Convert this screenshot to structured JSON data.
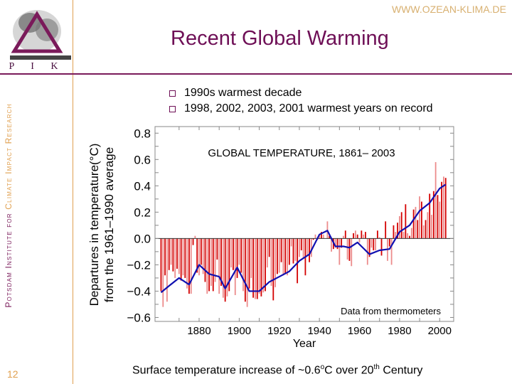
{
  "header": {
    "url": "WWW.OZEAN-KLIMA.DE",
    "title": "Recent Global Warming",
    "logo_text": "P I K"
  },
  "sidebar": {
    "part1": "Potsdam Institute for ",
    "part2": "Climate Impact Research"
  },
  "bullets": [
    "1990s warmest decade",
    "1998, 2002, 2003, 2001 warmest years on record"
  ],
  "page_number": "12",
  "caption": {
    "pre": "Surface temperature increase of ~0.6",
    "deg": "o",
    "mid": "C over 20",
    "sup": "th",
    "post": " Century"
  },
  "colors": {
    "accent": "#6e0f56",
    "secondary": "#e0a050",
    "bar_dark": "#d40000",
    "bar_light": "#ec8c8c",
    "smooth": "#1010b0"
  },
  "chart_data": {
    "type": "bar",
    "title": "GLOBAL TEMPERATURE, 1861– 2003",
    "annotation": "Data from thermometers",
    "xlabel": "Year",
    "ylabel_line1": "Departures in temperature(°C)",
    "ylabel_line2": "from the 1961–1990 average",
    "xlim": [
      1858,
      2007
    ],
    "ylim": [
      -0.63,
      0.85
    ],
    "xticks": [
      1880,
      1900,
      1920,
      1940,
      1960,
      1980,
      2000
    ],
    "yticks": [
      "0.8",
      "0.6",
      "0.4",
      "0.2",
      "0.0",
      "−0.2",
      "−0.4",
      "−0.6"
    ],
    "ytick_values": [
      0.8,
      0.6,
      0.4,
      0.2,
      0.0,
      -0.2,
      -0.4,
      -0.6
    ],
    "x_start": 1861,
    "series": [
      {
        "type": "bar",
        "values": [
          -0.4,
          -0.52,
          -0.28,
          -0.48,
          -0.24,
          -0.2,
          -0.25,
          -0.3,
          -0.23,
          -0.27,
          -0.32,
          -0.28,
          -0.3,
          -0.38,
          -0.42,
          -0.42,
          -0.05,
          0.02,
          -0.26,
          -0.28,
          -0.2,
          -0.27,
          -0.33,
          -0.42,
          -0.4,
          -0.36,
          -0.4,
          -0.33,
          -0.16,
          -0.42,
          -0.36,
          -0.45,
          -0.48,
          -0.44,
          -0.4,
          -0.22,
          -0.24,
          -0.43,
          -0.3,
          -0.2,
          -0.26,
          -0.4,
          -0.48,
          -0.52,
          -0.38,
          -0.3,
          -0.45,
          -0.46,
          -0.46,
          -0.42,
          -0.44,
          -0.41,
          -0.4,
          -0.22,
          -0.14,
          -0.36,
          -0.47,
          -0.37,
          -0.27,
          -0.26,
          -0.18,
          -0.28,
          -0.27,
          -0.28,
          -0.2,
          -0.06,
          -0.19,
          -0.17,
          -0.34,
          -0.14,
          -0.09,
          -0.15,
          -0.28,
          -0.13,
          -0.18,
          -0.14,
          -0.01,
          0.03,
          -0.01,
          0.03,
          0.05,
          0.03,
          0.0,
          0.13,
          0.02,
          -0.1,
          -0.08,
          -0.07,
          -0.08,
          -0.2,
          -0.07,
          0.02,
          0.06,
          -0.16,
          -0.17,
          -0.21,
          0.04,
          0.06,
          0.03,
          -0.03,
          0.06,
          0.03,
          0.05,
          -0.2,
          -0.14,
          -0.07,
          -0.09,
          -0.09,
          0.06,
          0.01,
          -0.13,
          0.0,
          0.13,
          -0.17,
          -0.06,
          -0.2,
          0.1,
          0.05,
          0.12,
          0.17,
          0.2,
          0.05,
          0.26,
          0.04,
          0.02,
          0.08,
          0.22,
          0.24,
          0.14,
          0.32,
          0.28,
          0.1,
          0.14,
          0.2,
          0.34,
          0.18,
          0.36,
          0.58,
          0.33,
          0.28,
          0.43,
          0.47,
          0.46
        ]
      },
      {
        "type": "line",
        "x": [
          1861,
          1865,
          1870,
          1875,
          1880,
          1885,
          1890,
          1893,
          1899,
          1905,
          1910,
          1915,
          1920,
          1925,
          1930,
          1935,
          1940,
          1944,
          1948,
          1952,
          1955,
          1959,
          1965,
          1970,
          1975,
          1980,
          1985,
          1990,
          1995,
          2000,
          2003
        ],
        "values": [
          -0.41,
          -0.36,
          -0.3,
          -0.35,
          -0.2,
          -0.27,
          -0.29,
          -0.38,
          -0.22,
          -0.4,
          -0.4,
          -0.33,
          -0.29,
          -0.25,
          -0.17,
          -0.12,
          0.03,
          0.06,
          -0.06,
          -0.06,
          -0.07,
          -0.03,
          -0.12,
          -0.09,
          -0.08,
          0.05,
          0.1,
          0.21,
          0.27,
          0.38,
          0.41
        ]
      }
    ]
  }
}
